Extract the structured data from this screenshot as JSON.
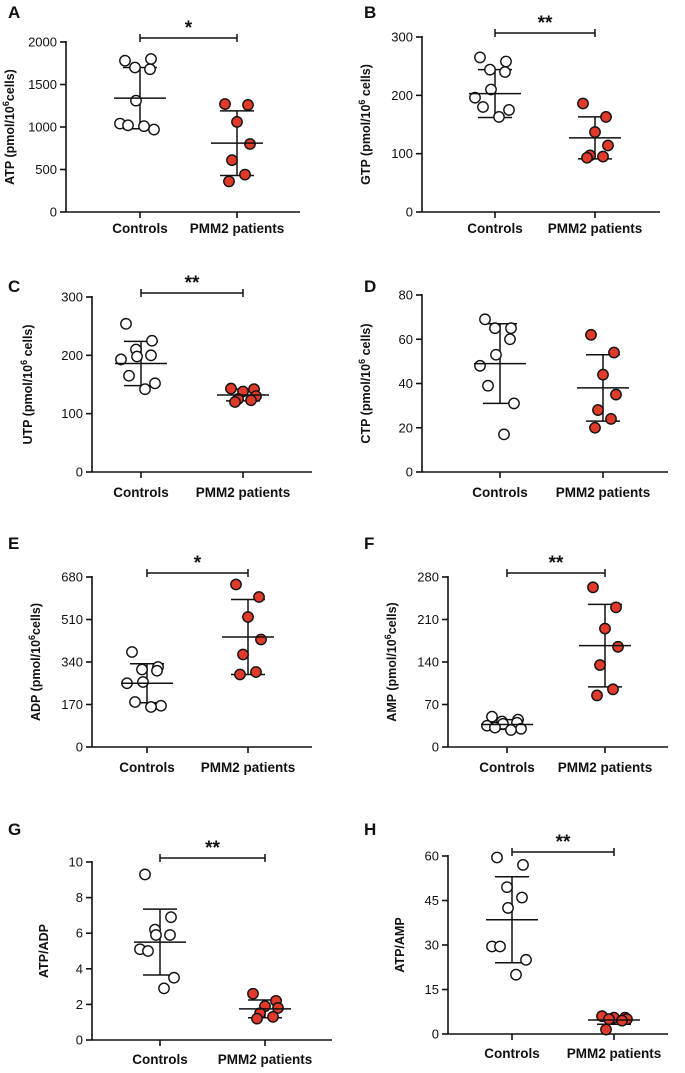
{
  "figure": {
    "category_labels": [
      "Controls",
      "PMM2 patients"
    ],
    "colors": {
      "controls_fill": "#ffffff",
      "patients_fill": "#e03a2b",
      "stroke": "#111111"
    }
  },
  "chart_data": [
    {
      "panel": "A",
      "type": "scatter",
      "ylabel": "ATP (pmol/10⁶cells)",
      "ylabel_parts": [
        "ATP (pmol/10",
        "6",
        "cells)"
      ],
      "yticks": [
        0,
        500,
        1000,
        1500,
        2000
      ],
      "ylim": [
        0,
        2000
      ],
      "categories": [
        "Controls",
        "PMM2 patients"
      ],
      "series": [
        {
          "name": "Controls",
          "values": [
            1780,
            1800,
            1700,
            1680,
            1310,
            1040,
            1020,
            970,
            1010
          ],
          "mean": 1340,
          "sd": 360
        },
        {
          "name": "PMM2 patients",
          "values": [
            1270,
            1260,
            1060,
            800,
            610,
            440,
            360
          ],
          "mean": 810,
          "sd": 380
        }
      ],
      "significance": "*"
    },
    {
      "panel": "B",
      "type": "scatter",
      "ylabel": "GTP (pmol/10⁶ cells)",
      "ylabel_parts": [
        "GTP (pmol/10",
        "6",
        " cells)"
      ],
      "yticks": [
        0,
        100,
        200,
        300
      ],
      "ylim": [
        0,
        300
      ],
      "categories": [
        "Controls",
        "PMM2 patients"
      ],
      "series": [
        {
          "name": "Controls",
          "values": [
            265,
            258,
            244,
            240,
            210,
            196,
            180,
            175,
            163
          ],
          "mean": 203,
          "sd": 41
        },
        {
          "name": "PMM2 patients",
          "values": [
            186,
            163,
            137,
            114,
            97,
            95,
            93
          ],
          "mean": 127,
          "sd": 36
        }
      ],
      "significance": "**"
    },
    {
      "panel": "C",
      "type": "scatter",
      "ylabel": "UTP (pmol/10⁶ cells)",
      "ylabel_parts": [
        "UTP (pmol/10",
        "6",
        " cells)"
      ],
      "yticks": [
        0,
        100,
        200,
        300
      ],
      "ylim": [
        0,
        300
      ],
      "categories": [
        "Controls",
        "PMM2 patients"
      ],
      "series": [
        {
          "name": "Controls",
          "values": [
            254,
            225,
            210,
            200,
            198,
            193,
            165,
            152,
            142
          ],
          "mean": 186,
          "sd": 38
        },
        {
          "name": "PMM2 patients",
          "values": [
            143,
            142,
            138,
            130,
            125,
            123,
            120
          ],
          "mean": 132,
          "sd": 10
        }
      ],
      "significance": "**"
    },
    {
      "panel": "D",
      "type": "scatter",
      "ylabel": "CTP (pmol/10⁶ cells)",
      "ylabel_parts": [
        "CTP (pmol/10",
        "6",
        " cells)"
      ],
      "yticks": [
        0,
        20,
        40,
        60,
        80
      ],
      "ylim": [
        0,
        80
      ],
      "categories": [
        "Controls",
        "PMM2 patients"
      ],
      "series": [
        {
          "name": "Controls",
          "values": [
            69,
            65,
            65,
            60,
            53,
            48,
            39,
            31,
            17
          ],
          "mean": 49,
          "sd": 18
        },
        {
          "name": "PMM2 patients",
          "values": [
            62,
            54,
            44,
            35,
            28,
            24,
            20
          ],
          "mean": 38,
          "sd": 15
        }
      ],
      "significance": ""
    },
    {
      "panel": "E",
      "type": "scatter",
      "ylabel": "ADP (pmol/10⁶cells)",
      "ylabel_parts": [
        "ADP (pmol/10",
        "6",
        "cells)"
      ],
      "yticks": [
        0,
        170,
        340,
        510,
        680
      ],
      "ylim": [
        0,
        680
      ],
      "categories": [
        "Controls",
        "PMM2 patients"
      ],
      "series": [
        {
          "name": "Controls",
          "values": [
            380,
            320,
            310,
            305,
            260,
            255,
            180,
            165,
            160
          ],
          "mean": 255,
          "sd": 78
        },
        {
          "name": "PMM2 patients",
          "values": [
            650,
            600,
            520,
            430,
            370,
            300,
            290
          ],
          "mean": 440,
          "sd": 150
        }
      ],
      "significance": "*"
    },
    {
      "panel": "F",
      "type": "scatter",
      "ylabel": "AMP (pmol/10⁶cells)",
      "ylabel_parts": [
        "AMP (pmol/10",
        "6",
        "cells)"
      ],
      "yticks": [
        0,
        70,
        140,
        210,
        280
      ],
      "ylim": [
        0,
        280
      ],
      "categories": [
        "Controls",
        "PMM2 patients"
      ],
      "series": [
        {
          "name": "Controls",
          "values": [
            50,
            45,
            42,
            40,
            38,
            35,
            32,
            30,
            28
          ],
          "mean": 37,
          "sd": 8
        },
        {
          "name": "PMM2 patients",
          "values": [
            263,
            230,
            195,
            165,
            135,
            95,
            85
          ],
          "mean": 167,
          "sd": 68
        }
      ],
      "significance": "**"
    },
    {
      "panel": "G",
      "type": "scatter",
      "ylabel": "ATP/ADP",
      "yticks": [
        0,
        2,
        4,
        6,
        8,
        10
      ],
      "ylim": [
        0,
        10
      ],
      "categories": [
        "Controls",
        "PMM2 patients"
      ],
      "series": [
        {
          "name": "Controls",
          "values": [
            9.3,
            6.9,
            6.2,
            5.9,
            5.9,
            5.1,
            5.0,
            3.5,
            2.9
          ],
          "mean": 5.5,
          "sd": 1.85
        },
        {
          "name": "PMM2 patients",
          "values": [
            2.6,
            2.2,
            1.9,
            1.8,
            1.5,
            1.3,
            1.2
          ],
          "mean": 1.75,
          "sd": 0.5
        }
      ],
      "significance": "**"
    },
    {
      "panel": "H",
      "type": "scatter",
      "ylabel": "ATP/AMP",
      "yticks": [
        0,
        15,
        30,
        45,
        60
      ],
      "ylim": [
        0,
        60
      ],
      "categories": [
        "Controls",
        "PMM2 patients"
      ],
      "series": [
        {
          "name": "Controls",
          "values": [
            59.5,
            57,
            49.5,
            46,
            42.5,
            29.5,
            29.5,
            25,
            20
          ],
          "mean": 38.5,
          "sd": 14.5
        },
        {
          "name": "PMM2 patients",
          "values": [
            6,
            5.5,
            5.5,
            5,
            5,
            4.5,
            1.5
          ],
          "mean": 4.7,
          "sd": 1.4
        }
      ],
      "significance": "**"
    }
  ]
}
